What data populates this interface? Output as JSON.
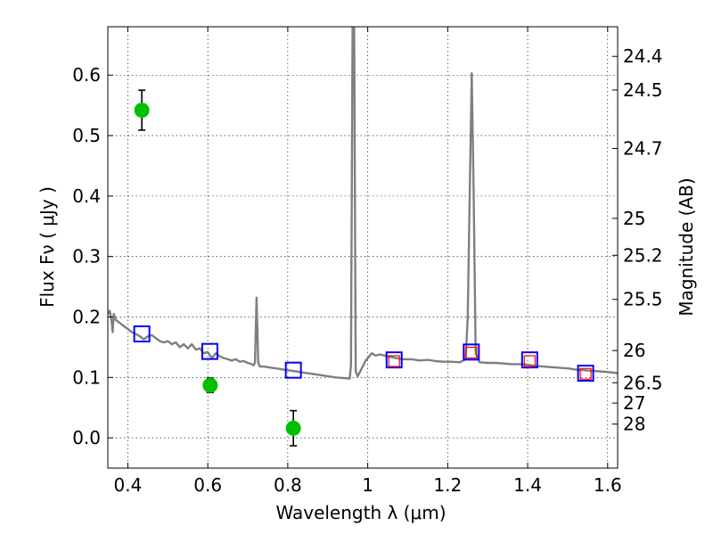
{
  "chart_data": {
    "type": "scatter",
    "xlabel": "Wavelength  λ (μm)",
    "ylabel": "Flux  Fν  ( μJy )",
    "y2label": "Magnitude (AB)",
    "xlim": [
      0.35,
      1.625
    ],
    "ylim": [
      -0.05,
      0.68
    ],
    "grid": true,
    "x_ticks": [
      0.4,
      0.6,
      0.8,
      1.0,
      1.2,
      1.4,
      1.6
    ],
    "x_tick_labels": [
      "0.4",
      "0.6",
      "0.8",
      "1",
      "1.2",
      "1.4",
      "1.6"
    ],
    "y_ticks": [
      0.0,
      0.1,
      0.2,
      0.3,
      0.4,
      0.5,
      0.6
    ],
    "y_tick_labels": [
      "0.0",
      "0.1",
      "0.2",
      "0.3",
      "0.4",
      "0.5",
      "0.6"
    ],
    "y2_ticks": [
      {
        "label": "24.4",
        "flux": 0.631
      },
      {
        "label": "24.5",
        "flux": 0.5754
      },
      {
        "label": "24.7",
        "flux": 0.4786
      },
      {
        "label": "25",
        "flux": 0.3631
      },
      {
        "label": "25.2",
        "flux": 0.302
      },
      {
        "label": "25.5",
        "flux": 0.2291
      },
      {
        "label": "26",
        "flux": 0.1445
      },
      {
        "label": "26.5",
        "flux": 0.0912
      },
      {
        "label": "27",
        "flux": 0.0575
      },
      {
        "label": "28",
        "flux": 0.0229
      }
    ],
    "series": [
      {
        "kind": "line",
        "color": "#7f7f7f",
        "points": [
          [
            0.35,
            0.205
          ],
          [
            0.355,
            0.21
          ],
          [
            0.36,
            0.19
          ],
          [
            0.362,
            0.175
          ],
          [
            0.365,
            0.205
          ],
          [
            0.37,
            0.195
          ],
          [
            0.38,
            0.19
          ],
          [
            0.39,
            0.185
          ],
          [
            0.4,
            0.18
          ],
          [
            0.41,
            0.175
          ],
          [
            0.42,
            0.172
          ],
          [
            0.43,
            0.168
          ],
          [
            0.44,
            0.163
          ],
          [
            0.45,
            0.168
          ],
          [
            0.46,
            0.17
          ],
          [
            0.47,
            0.165
          ],
          [
            0.48,
            0.16
          ],
          [
            0.49,
            0.158
          ],
          [
            0.5,
            0.16
          ],
          [
            0.51,
            0.155
          ],
          [
            0.52,
            0.158
          ],
          [
            0.53,
            0.15
          ],
          [
            0.54,
            0.155
          ],
          [
            0.55,
            0.148
          ],
          [
            0.56,
            0.155
          ],
          [
            0.57,
            0.146
          ],
          [
            0.58,
            0.148
          ],
          [
            0.59,
            0.14
          ],
          [
            0.6,
            0.142
          ],
          [
            0.61,
            0.132
          ],
          [
            0.62,
            0.14
          ],
          [
            0.63,
            0.135
          ],
          [
            0.64,
            0.132
          ],
          [
            0.65,
            0.13
          ],
          [
            0.66,
            0.128
          ],
          [
            0.67,
            0.13
          ],
          [
            0.68,
            0.126
          ],
          [
            0.69,
            0.127
          ],
          [
            0.7,
            0.124
          ],
          [
            0.71,
            0.122
          ],
          [
            0.715,
            0.12
          ],
          [
            0.718,
            0.125
          ],
          [
            0.722,
            0.232
          ],
          [
            0.726,
            0.125
          ],
          [
            0.73,
            0.118
          ],
          [
            0.74,
            0.118
          ],
          [
            0.75,
            0.117
          ],
          [
            0.76,
            0.116
          ],
          [
            0.77,
            0.115
          ],
          [
            0.78,
            0.114
          ],
          [
            0.8,
            0.112
          ],
          [
            0.82,
            0.11
          ],
          [
            0.84,
            0.108
          ],
          [
            0.86,
            0.106
          ],
          [
            0.88,
            0.104
          ],
          [
            0.9,
            0.102
          ],
          [
            0.92,
            0.1
          ],
          [
            0.94,
            0.099
          ],
          [
            0.955,
            0.098
          ],
          [
            0.958,
            0.12
          ],
          [
            0.962,
            0.68
          ],
          [
            0.966,
            0.68
          ],
          [
            0.97,
            0.11
          ],
          [
            0.975,
            0.102
          ],
          [
            0.985,
            0.115
          ],
          [
            0.995,
            0.128
          ],
          [
            1.0,
            0.132
          ],
          [
            1.01,
            0.14
          ],
          [
            1.02,
            0.136
          ],
          [
            1.03,
            0.138
          ],
          [
            1.05,
            0.135
          ],
          [
            1.07,
            0.132
          ],
          [
            1.09,
            0.13
          ],
          [
            1.11,
            0.13
          ],
          [
            1.13,
            0.128
          ],
          [
            1.15,
            0.129
          ],
          [
            1.17,
            0.127
          ],
          [
            1.19,
            0.126
          ],
          [
            1.21,
            0.126
          ],
          [
            1.23,
            0.125
          ],
          [
            1.245,
            0.13
          ],
          [
            1.25,
            0.2
          ],
          [
            1.255,
            0.4
          ],
          [
            1.26,
            0.603
          ],
          [
            1.265,
            0.4
          ],
          [
            1.27,
            0.14
          ],
          [
            1.28,
            0.125
          ],
          [
            1.3,
            0.124
          ],
          [
            1.32,
            0.124
          ],
          [
            1.34,
            0.123
          ],
          [
            1.36,
            0.122
          ],
          [
            1.38,
            0.122
          ],
          [
            1.4,
            0.121
          ],
          [
            1.42,
            0.119
          ],
          [
            1.44,
            0.118
          ],
          [
            1.46,
            0.117
          ],
          [
            1.48,
            0.116
          ],
          [
            1.5,
            0.115
          ],
          [
            1.52,
            0.113
          ],
          [
            1.54,
            0.112
          ],
          [
            1.56,
            0.111
          ],
          [
            1.58,
            0.11
          ],
          [
            1.6,
            0.109
          ],
          [
            1.625,
            0.107
          ]
        ]
      },
      {
        "kind": "model-photometry",
        "color": "#0000ff",
        "points": [
          [
            0.435,
            0.172
          ],
          [
            0.605,
            0.143
          ],
          [
            0.814,
            0.112
          ],
          [
            1.066,
            0.129
          ],
          [
            1.259,
            0.142
          ],
          [
            1.405,
            0.129
          ],
          [
            1.545,
            0.107
          ]
        ]
      },
      {
        "kind": "model-photometry-inner",
        "color": "#ff0000",
        "points": [
          [
            1.066,
            0.127
          ],
          [
            1.259,
            0.141
          ],
          [
            1.405,
            0.127
          ],
          [
            1.545,
            0.106
          ]
        ]
      },
      {
        "kind": "observed",
        "color": "#00c000",
        "points": [
          {
            "x": 0.435,
            "y": 0.542,
            "err": 0.033
          },
          {
            "x": 0.606,
            "y": 0.087,
            "err": 0.012
          },
          {
            "x": 0.814,
            "y": 0.016,
            "err": 0.029
          }
        ]
      }
    ]
  }
}
